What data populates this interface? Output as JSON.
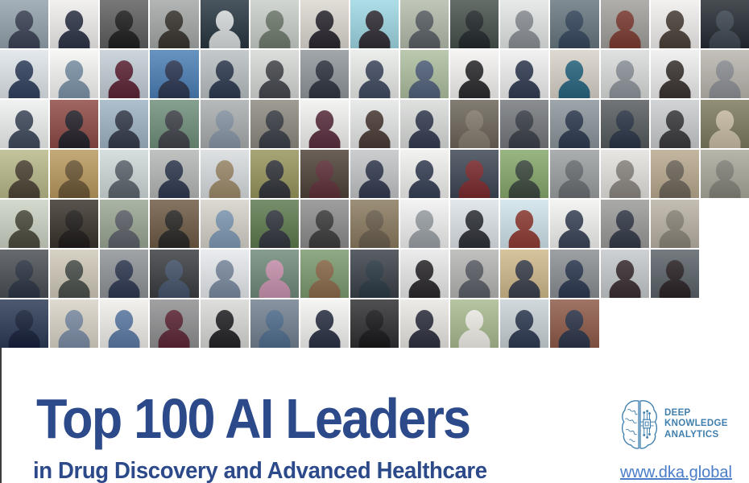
{
  "header": {
    "title": "Top 100 AI Leaders",
    "subtitle": "in Drug Discovery and Advanced Healthcare",
    "title_color": "#2c4a8a"
  },
  "brand": {
    "lines": [
      "DEEP",
      "KNOWLEDGE",
      "ANALYTICS"
    ],
    "color": "#3f7fae",
    "icon": "brain-circuit-icon",
    "website": "www.dka.global",
    "website_color": "#4a7cc7"
  },
  "photo_grid": {
    "total": 100,
    "row_counts": [
      15,
      15,
      15,
      15,
      14,
      14,
      12
    ],
    "rows": [
      [
        {
          "bg": "#93a2ac",
          "fg": "#3c4256"
        },
        {
          "bg": "#efeeec",
          "fg": "#2e3448"
        },
        {
          "bg": "#5e5e5e",
          "fg": "#1e1e1e"
        },
        {
          "bg": "#a3a7a6",
          "fg": "#38332d"
        },
        {
          "bg": "#273640",
          "fg": "#d8dcdd"
        },
        {
          "bg": "#c9cec9",
          "fg": "#6f7a6c"
        },
        {
          "bg": "#dcd7d0",
          "fg": "#2a2730"
        },
        {
          "bg": "#9ed7e3",
          "fg": "#322d36"
        },
        {
          "bg": "#b3bcab",
          "fg": "#5a6065"
        },
        {
          "bg": "#46514b",
          "fg": "#23292c"
        },
        {
          "bg": "#e2e6e4",
          "fg": "#8a8f94"
        },
        {
          "bg": "#67767f",
          "fg": "#35465c"
        },
        {
          "bg": "#a19f9b",
          "fg": "#7c3b31"
        },
        {
          "bg": "#f1efee",
          "fg": "#4a4038"
        },
        {
          "bg": "#242b31",
          "fg": "#3d4651"
        }
      ],
      [
        {
          "bg": "#dfe5ea",
          "fg": "#31415e"
        },
        {
          "bg": "#f5f5f4",
          "fg": "#7c93a8"
        },
        {
          "bg": "#c3cdd6",
          "fg": "#5d2436"
        },
        {
          "bg": "#4a7fb5",
          "fg": "#2b3752"
        },
        {
          "bg": "#b9bfc2",
          "fg": "#2e3a50"
        },
        {
          "bg": "#d6d8d6",
          "fg": "#44474c"
        },
        {
          "bg": "#8f969b",
          "fg": "#2f3440"
        },
        {
          "bg": "#e9ebe8",
          "fg": "#3f4b60"
        },
        {
          "bg": "#aebfa0",
          "fg": "#51617a"
        },
        {
          "bg": "#f4f3f1",
          "fg": "#2b2b2e"
        },
        {
          "bg": "#efefef",
          "fg": "#323c52"
        },
        {
          "bg": "#d8d2c8",
          "fg": "#27657f"
        },
        {
          "bg": "#d9dcda",
          "fg": "#8d949b"
        },
        {
          "bg": "#eeeeee",
          "fg": "#3a3330"
        },
        {
          "bg": "#b9b5ae",
          "fg": "#8c8f94"
        }
      ],
      [
        {
          "bg": "#eef0f0",
          "fg": "#3f4a5c"
        },
        {
          "bg": "#8e4a45",
          "fg": "#25222a"
        },
        {
          "bg": "#9fb3c4",
          "fg": "#343b4a"
        },
        {
          "bg": "#6f8f7a",
          "fg": "#40434a"
        },
        {
          "bg": "#a9adad",
          "fg": "#8795a5"
        },
        {
          "bg": "#8d8a7f",
          "fg": "#3a3e46"
        },
        {
          "bg": "#f1f1ef",
          "fg": "#5a2e3e"
        },
        {
          "bg": "#e5e7e6",
          "fg": "#4a3b35"
        },
        {
          "bg": "#d9dbd9",
          "fg": "#333c50"
        },
        {
          "bg": "#6b6459",
          "fg": "#857b6e"
        },
        {
          "bg": "#75787c",
          "fg": "#3a3f48"
        },
        {
          "bg": "#8b959b",
          "fg": "#2e3a50"
        },
        {
          "bg": "#565b5e",
          "fg": "#2b3546"
        },
        {
          "bg": "#c9ccce",
          "fg": "#3a3a3e"
        },
        {
          "bg": "#7d7a5e",
          "fg": "#c9bda4"
        }
      ],
      [
        {
          "bg": "#b9b98a",
          "fg": "#4d4434"
        },
        {
          "bg": "#b99a5e",
          "fg": "#6e5836"
        },
        {
          "bg": "#cfd9d9",
          "fg": "#5d666e"
        },
        {
          "bg": "#b4b7b6",
          "fg": "#2f3850"
        },
        {
          "bg": "#d8dcde",
          "fg": "#9c8a6a"
        },
        {
          "bg": "#97955c",
          "fg": "#31343a"
        },
        {
          "bg": "#4e4238",
          "fg": "#5e3038"
        },
        {
          "bg": "#c2c4c6",
          "fg": "#323a4e"
        },
        {
          "bg": "#f0f0ee",
          "fg": "#363f55"
        },
        {
          "bg": "#3c4654",
          "fg": "#7a2a2e"
        },
        {
          "bg": "#86a86b",
          "fg": "#3c4a3e"
        },
        {
          "bg": "#9b9fa0",
          "fg": "#6a6e72"
        },
        {
          "bg": "#e4e2de",
          "fg": "#8a8580"
        },
        {
          "bg": "#b9a98e",
          "fg": "#6e665a"
        },
        {
          "bg": "#a8a89a",
          "fg": "#83837a"
        }
      ],
      [
        {
          "bg": "#ccd2c4",
          "fg": "#4a4a3c"
        },
        {
          "bg": "#3a332c",
          "fg": "#1f1c1a"
        },
        {
          "bg": "#9aa694",
          "fg": "#5c6168"
        },
        {
          "bg": "#6e5a44",
          "fg": "#2a2826"
        },
        {
          "bg": "#d5d2c9",
          "fg": "#7e99b4"
        },
        {
          "bg": "#5d7a4e",
          "fg": "#32363e"
        },
        {
          "bg": "#8c8c8c",
          "fg": "#3c3c3c"
        },
        {
          "bg": "#8a7a5e",
          "fg": "#6a5e4c"
        },
        {
          "bg": "#f1f1f1",
          "fg": "#9aa0a6"
        },
        {
          "bg": "#dce3e8",
          "fg": "#2e3138"
        },
        {
          "bg": "#cfe3ea",
          "fg": "#8e3b34"
        },
        {
          "bg": "#f2f2f0",
          "fg": "#3a4458"
        },
        {
          "bg": "#9a9a98",
          "fg": "#323a48"
        },
        {
          "bg": "#b9b2a4",
          "fg": "#8a8478"
        }
      ],
      [
        {
          "bg": "#4a4f55",
          "fg": "#2c3444"
        },
        {
          "bg": "#cfc9b9",
          "fg": "#4a4f4a"
        },
        {
          "bg": "#8e9296",
          "fg": "#2e3850"
        },
        {
          "bg": "#3a3d40",
          "fg": "#44536b"
        },
        {
          "bg": "#e6e9ec",
          "fg": "#7a8aa0"
        },
        {
          "bg": "#6f8a7a",
          "fg": "#c993ae"
        },
        {
          "bg": "#7a9a6e",
          "fg": "#8a6a4a"
        },
        {
          "bg": "#3a4148",
          "fg": "#2a3844"
        },
        {
          "bg": "#e8e8e8",
          "fg": "#2a282c"
        },
        {
          "bg": "#b5b5b3",
          "fg": "#5a5e66"
        },
        {
          "bg": "#cfb98a",
          "fg": "#3a3f4a"
        },
        {
          "bg": "#8a8e92",
          "fg": "#2c3850"
        },
        {
          "bg": "#c5c9cc",
          "fg": "#3a2e32"
        },
        {
          "bg": "#5a6268",
          "fg": "#2a2326"
        }
      ],
      [
        {
          "bg": "#2c3a55",
          "fg": "#16203a"
        },
        {
          "bg": "#d9d3c6",
          "fg": "#7b8ca4"
        },
        {
          "bg": "#efeeea",
          "fg": "#5b7aa4"
        },
        {
          "bg": "#8f8f91",
          "fg": "#5c2535"
        },
        {
          "bg": "#d8d8d6",
          "fg": "#232327"
        },
        {
          "bg": "#72808f",
          "fg": "#4f6d8e"
        },
        {
          "bg": "#f3f3f1",
          "fg": "#2b3145"
        },
        {
          "bg": "#2f2f31",
          "fg": "#18181a"
        },
        {
          "bg": "#e9e7e2",
          "fg": "#2e3040"
        },
        {
          "bg": "#a8bb90",
          "fg": "#f0eee8"
        },
        {
          "bg": "#c9d2d6",
          "fg": "#2e3a52"
        },
        {
          "bg": "#8e5a48",
          "fg": "#2c3448"
        }
      ]
    ]
  }
}
